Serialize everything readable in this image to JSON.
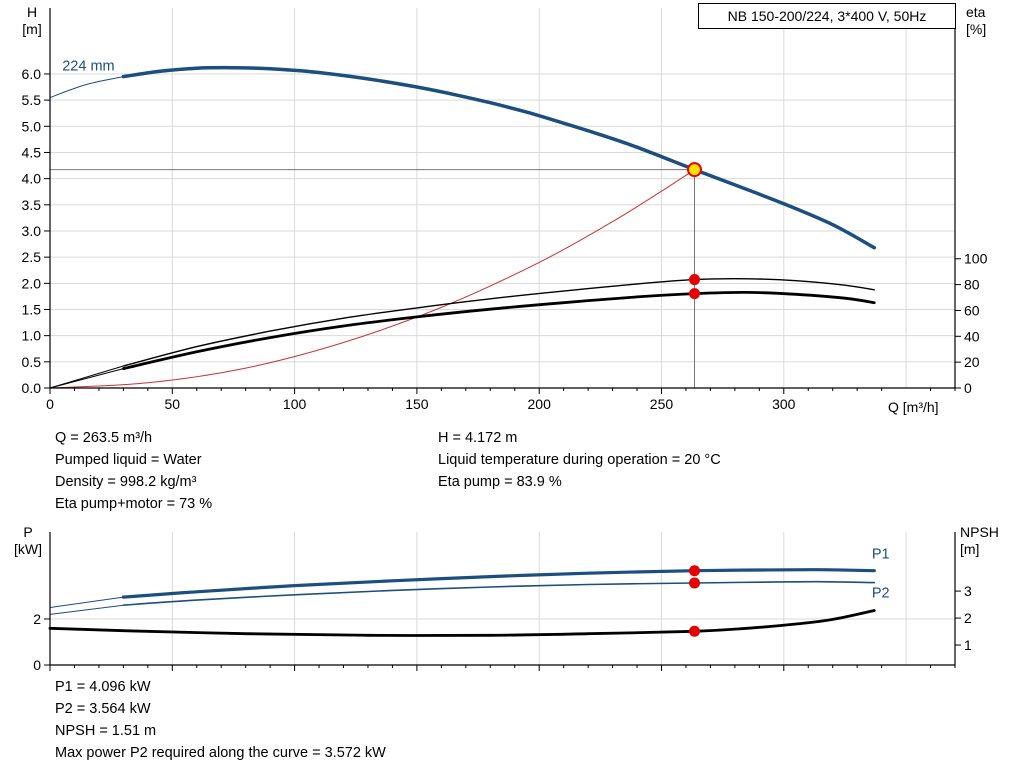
{
  "title_box": "NB 150-200/224, 3*400 V, 50Hz",
  "colors": {
    "curve_blue": "#1c4e80",
    "system_red": "#cc3333",
    "marker_red": "#e60000",
    "marker_yellow": "#ffe000",
    "black": "#000000",
    "grid": "#d9d9d9",
    "crosshair": "#777777"
  },
  "info_top": {
    "col1": [
      "Q = 263.5 m³/h",
      "Pumped liquid = Water",
      "Density = 998.2 kg/m³",
      "Eta pump+motor = 73 %"
    ],
    "col2": [
      "H = 4.172 m",
      "Liquid temperature during operation = 20 °C",
      "Eta pump = 83.9 %"
    ]
  },
  "info_bottom": [
    "P1 = 4.096 kW",
    "P2 = 3.564 kW",
    "NPSH = 1.51 m",
    "Max power P2 required along the curve = 3.572 kW"
  ],
  "chart_data": [
    {
      "type": "line",
      "title": "NB 150-200/224, 3*400 V, 50Hz",
      "x_axis": {
        "label": "Q [m³/h]",
        "min": 0,
        "max": 370,
        "major_ticks": [
          0,
          50,
          100,
          150,
          200,
          250,
          300
        ],
        "minor_step": 10,
        "grid_x": [
          50,
          100,
          150,
          200,
          250,
          300,
          350
        ],
        "show_tick_labels": true
      },
      "y_left": {
        "name_lines": [
          "H",
          "[m]"
        ],
        "min": 0,
        "max": 7.26,
        "ticks": [
          0,
          0.5,
          1,
          1.5,
          2,
          2.5,
          3,
          3.5,
          4,
          4.5,
          5,
          5.5,
          6
        ],
        "tick_labels": [
          "0.0",
          "0.5",
          "1.0",
          "1.5",
          "2.0",
          "2.5",
          "3.0",
          "3.5",
          "4.0",
          "4.5",
          "5.0",
          "5.5",
          "6.0"
        ]
      },
      "y_right": {
        "name_lines": [
          "eta",
          "[%]"
        ],
        "min": 0,
        "max": 294,
        "ticks": [
          0,
          20,
          40,
          60,
          80,
          100
        ],
        "tick_labels": [
          "0",
          "20",
          "40",
          "60",
          "80",
          "100"
        ]
      },
      "series": [
        {
          "name": "head-224mm",
          "label": "224 mm",
          "axis": "left",
          "color": "#1c4e80",
          "width": 3.5,
          "thin_until": 30,
          "points": [
            [
              0,
              5.55
            ],
            [
              15,
              5.8
            ],
            [
              30,
              5.95
            ],
            [
              45,
              6.05
            ],
            [
              60,
              6.11
            ],
            [
              75,
              6.12
            ],
            [
              90,
              6.1
            ],
            [
              105,
              6.05
            ],
            [
              120,
              5.97
            ],
            [
              135,
              5.87
            ],
            [
              150,
              5.75
            ],
            [
              165,
              5.61
            ],
            [
              180,
              5.45
            ],
            [
              195,
              5.27
            ],
            [
              210,
              5.06
            ],
            [
              225,
              4.84
            ],
            [
              240,
              4.6
            ],
            [
              263.5,
              4.172
            ],
            [
              280,
              3.88
            ],
            [
              300,
              3.52
            ],
            [
              320,
              3.12
            ],
            [
              337,
              2.68
            ]
          ]
        },
        {
          "name": "system-curve",
          "axis": "left",
          "color": "#cc3333",
          "width": 1,
          "points": [
            [
              0,
              0
            ],
            [
              40,
              0.1
            ],
            [
              80,
              0.38
            ],
            [
              120,
              0.87
            ],
            [
              160,
              1.54
            ],
            [
              200,
              2.4
            ],
            [
              230,
              3.18
            ],
            [
              250,
              3.76
            ],
            [
              263.5,
              4.172
            ]
          ]
        },
        {
          "name": "eta-pump",
          "axis": "right",
          "color": "#000000",
          "width": 1.4,
          "thin_until": 30,
          "points": [
            [
              0,
              0
            ],
            [
              30,
              17
            ],
            [
              60,
              32
            ],
            [
              90,
              44
            ],
            [
              120,
              54
            ],
            [
              150,
              62
            ],
            [
              180,
              69
            ],
            [
              210,
              75
            ],
            [
              240,
              80.5
            ],
            [
              263.5,
              83.9
            ],
            [
              285,
              84.5
            ],
            [
              305,
              83
            ],
            [
              325,
              79.5
            ],
            [
              337,
              76
            ]
          ]
        },
        {
          "name": "eta-pump-motor",
          "axis": "right",
          "color": "#000000",
          "width": 2.8,
          "thin_until": 30,
          "points": [
            [
              0,
              0
            ],
            [
              30,
              15
            ],
            [
              60,
              28
            ],
            [
              90,
              39
            ],
            [
              120,
              48
            ],
            [
              150,
              55
            ],
            [
              180,
              61
            ],
            [
              210,
              66
            ],
            [
              240,
              70.5
            ],
            [
              263.5,
              73
            ],
            [
              285,
              74
            ],
            [
              305,
              72.5
            ],
            [
              325,
              69.5
            ],
            [
              337,
              66
            ]
          ]
        }
      ],
      "annotations": [
        {
          "text": "224 mm",
          "q": 5,
          "v": 6.07,
          "axis": "left",
          "color": "#1c4e80"
        }
      ],
      "crosshair": {
        "q": 263.5,
        "v": 4.172
      },
      "markers": [
        {
          "name": "duty-point",
          "q": 263.5,
          "v": 4.172,
          "axis": "left",
          "fill": "#ffe000",
          "stroke": "#e60000",
          "r": 6.5
        },
        {
          "name": "eta-pump-point",
          "q": 263.5,
          "v": 83.9,
          "axis": "right",
          "fill": "#e60000",
          "r": 5.5
        },
        {
          "name": "eta-pump-motor-point",
          "q": 263.5,
          "v": 73,
          "axis": "right",
          "fill": "#e60000",
          "r": 5.5
        }
      ]
    },
    {
      "type": "line",
      "title": "Power and NPSH curves",
      "x_axis": {
        "label": "",
        "min": 0,
        "max": 370,
        "major_ticks": [
          0,
          50,
          100,
          150,
          200,
          250,
          300
        ],
        "minor_step": 10,
        "grid_x": [
          50,
          100,
          150,
          200,
          250,
          300,
          350
        ],
        "show_tick_labels": false
      },
      "y_left": {
        "name_lines": [
          "P",
          "[kW]"
        ],
        "min": 0,
        "max": 5.78,
        "ticks": [
          0,
          2
        ],
        "tick_labels": [
          "0",
          "2"
        ]
      },
      "y_right": {
        "name_lines": [
          "NPSH",
          "[m]"
        ],
        "min": 0.26,
        "max": 5.19,
        "ticks": [
          1,
          2,
          3
        ],
        "tick_labels": [
          "1",
          "2",
          "3"
        ]
      },
      "series": [
        {
          "name": "P1",
          "axis": "left",
          "color": "#1c4e80",
          "width": 3.2,
          "thin_until": 30,
          "points": [
            [
              0,
              2.5
            ],
            [
              30,
              2.95
            ],
            [
              60,
              3.18
            ],
            [
              100,
              3.45
            ],
            [
              140,
              3.66
            ],
            [
              180,
              3.84
            ],
            [
              220,
              3.99
            ],
            [
              263.5,
              4.096
            ],
            [
              290,
              4.13
            ],
            [
              315,
              4.14
            ],
            [
              337,
              4.1
            ]
          ]
        },
        {
          "name": "P2",
          "axis": "left",
          "color": "#1c4e80",
          "width": 1.6,
          "thin_until": 30,
          "points": [
            [
              0,
              2.2
            ],
            [
              30,
              2.6
            ],
            [
              60,
              2.82
            ],
            [
              100,
              3.05
            ],
            [
              140,
              3.24
            ],
            [
              180,
              3.39
            ],
            [
              220,
              3.5
            ],
            [
              263.5,
              3.564
            ],
            [
              290,
              3.6
            ],
            [
              315,
              3.62
            ],
            [
              337,
              3.58
            ]
          ]
        },
        {
          "name": "NPSH",
          "axis": "right",
          "color": "#000000",
          "width": 2.8,
          "points": [
            [
              0,
              1.62
            ],
            [
              30,
              1.53
            ],
            [
              80,
              1.42
            ],
            [
              130,
              1.36
            ],
            [
              180,
              1.36
            ],
            [
              220,
              1.42
            ],
            [
              263.5,
              1.51
            ],
            [
              285,
              1.62
            ],
            [
              305,
              1.78
            ],
            [
              320,
              1.95
            ],
            [
              337,
              2.28
            ]
          ]
        }
      ],
      "annotations": [
        {
          "text": "P1",
          "q": 336,
          "v": 4.62,
          "axis": "left",
          "color": "#1c4e80"
        },
        {
          "text": "P2",
          "q": 336,
          "v": 2.93,
          "axis": "left",
          "color": "#1c4e80"
        }
      ],
      "markers": [
        {
          "name": "p1-point",
          "q": 263.5,
          "v": 4.096,
          "axis": "left",
          "fill": "#e60000",
          "r": 5.5
        },
        {
          "name": "p2-point",
          "q": 263.5,
          "v": 3.564,
          "axis": "left",
          "fill": "#e60000",
          "r": 5.5
        },
        {
          "name": "npsh-point",
          "q": 263.5,
          "v": 1.51,
          "axis": "right",
          "fill": "#e60000",
          "r": 5.5
        }
      ]
    }
  ]
}
